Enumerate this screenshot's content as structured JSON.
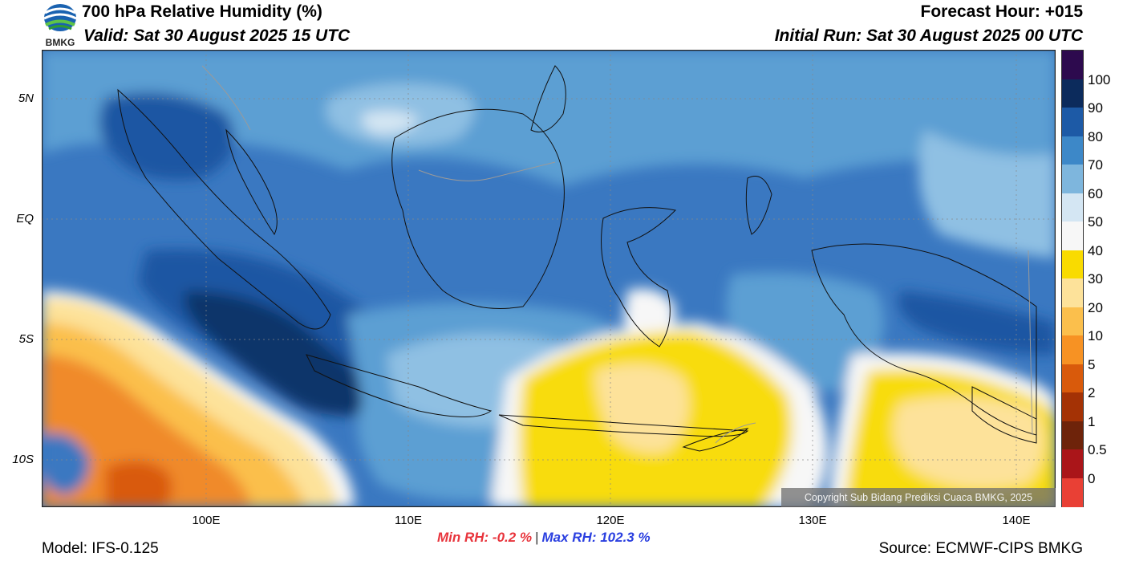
{
  "header": {
    "title": "700 hPa Relative Humidity (%)",
    "valid": "Valid: Sat 30 August 2025 15 UTC",
    "forecast_hour": "Forecast Hour: +015",
    "initial_run": "Initial Run: Sat 30 August 2025 00 UTC"
  },
  "logo": {
    "icon": "bmkg-logo-icon",
    "text": "BMKG"
  },
  "map": {
    "lat_labels": [
      "5N",
      "EQ",
      "5S",
      "10S"
    ],
    "lon_labels": [
      "100E",
      "110E",
      "120E",
      "130E",
      "140E"
    ],
    "copyright": "Copyright Sub Bidang Prediksi Cuaca BMKG, 2025",
    "colors": {
      "dry": "#f08a2a",
      "yellow": "#f8dc0a",
      "white": "#f7f7f7",
      "light_blue": "#8fc0e3",
      "mid_blue": "#5b9fd3",
      "blue": "#3a78c1",
      "dark_blue": "#1f56a3",
      "navy": "#0f346a"
    }
  },
  "colorbar": {
    "labels": [
      "100",
      "90",
      "80",
      "70",
      "60",
      "50",
      "40",
      "30",
      "20",
      "10",
      "5",
      "2",
      "1",
      "0.5",
      "0"
    ],
    "colors": [
      "#2d0a4e",
      "#0c2b5c",
      "#1d5aa6",
      "#3d88c8",
      "#7eb6dd",
      "#d4e6f3",
      "#f7f7f7",
      "#f9db00",
      "#fde29a",
      "#fbbf4c",
      "#f79223",
      "#d95a0b",
      "#a43205",
      "#6e230a",
      "#aa1519",
      "#e94035"
    ]
  },
  "stats": {
    "min": "Min RH:  -0.2 %",
    "separator": "|",
    "max": "Max RH: 102.3 %"
  },
  "footer": {
    "model": "Model: IFS-0.125",
    "source": "Source: ECMWF-CIPS BMKG"
  }
}
